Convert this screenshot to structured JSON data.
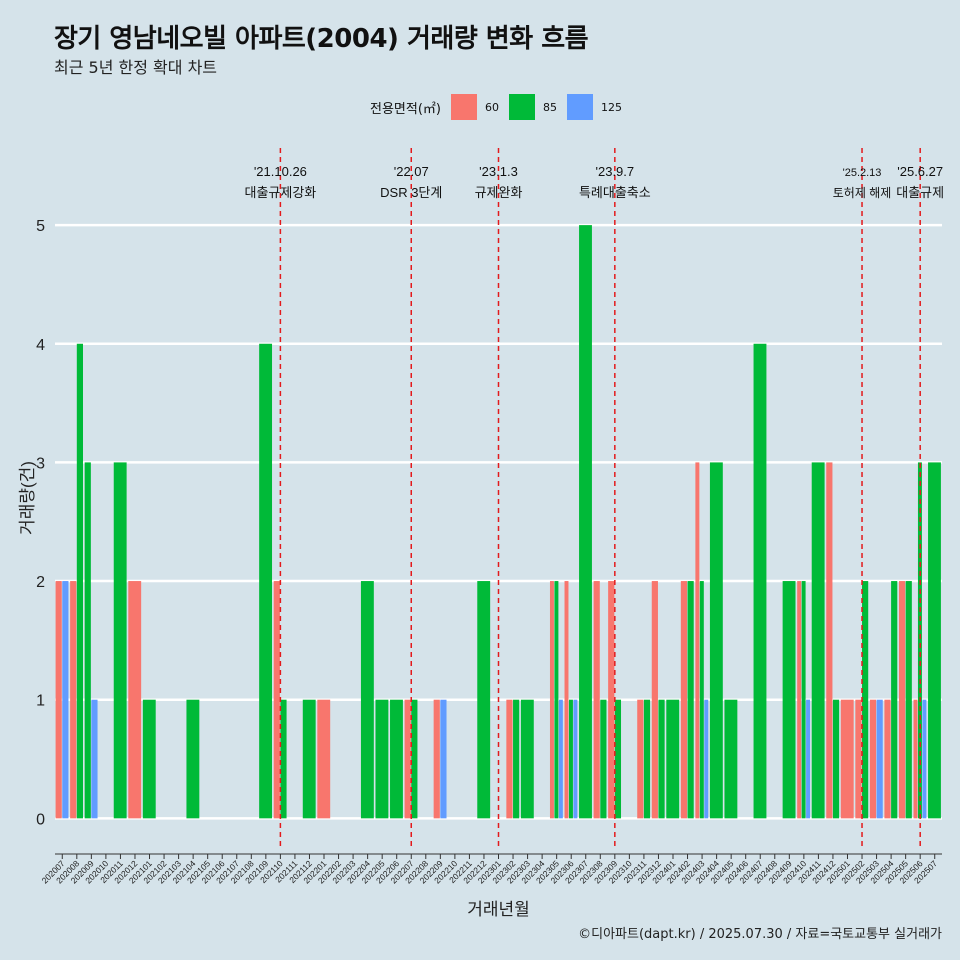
{
  "title": "장기 영남네오빌 아파트(2004) 거래량 변화 흐름",
  "subtitle": "최근 5년 한정 확대 차트",
  "legend": {
    "title": "전용면적(㎡)",
    "items": [
      {
        "label": "60",
        "color": "#f8766d"
      },
      {
        "label": "85",
        "color": "#00ba38"
      },
      {
        "label": "125",
        "color": "#619cff"
      }
    ]
  },
  "source": "©디아파트(dapt.kr) / 2025.07.30 / 자료=국토교통부 실거래가",
  "chart_data": {
    "type": "bar",
    "xlabel": "거래년월",
    "ylabel": "거래량(건)",
    "ylim": [
      -0.25,
      5.65
    ],
    "yticks": [
      0,
      1,
      2,
      3,
      4,
      5
    ],
    "categories": [
      "202007",
      "202008",
      "202009",
      "202010",
      "202011",
      "202012",
      "202101",
      "202102",
      "202103",
      "202104",
      "202105",
      "202106",
      "202107",
      "202108",
      "202109",
      "202110",
      "202111",
      "202112",
      "202201",
      "202202",
      "202203",
      "202204",
      "202205",
      "202206",
      "202207",
      "202208",
      "202209",
      "202210",
      "202211",
      "202212",
      "202301",
      "202302",
      "202303",
      "202304",
      "202305",
      "202306",
      "202307",
      "202308",
      "202309",
      "202310",
      "202311",
      "202312",
      "202401",
      "202402",
      "202403",
      "202404",
      "202405",
      "202406",
      "202407",
      "202408",
      "202409",
      "202410",
      "202411",
      "202412",
      "202501",
      "202502",
      "202503",
      "202504",
      "202505",
      "202506",
      "202507"
    ],
    "series": [
      {
        "name": "60",
        "color": "#f8766d",
        "values": [
          2,
          2,
          0,
          0,
          0,
          2,
          0,
          0,
          0,
          0,
          0,
          0,
          0,
          0,
          0,
          2,
          0,
          0,
          1,
          0,
          0,
          0,
          0,
          0,
          1,
          0,
          1,
          0,
          0,
          0,
          0,
          1,
          0,
          0,
          2,
          2,
          0,
          2,
          2,
          0,
          1,
          2,
          0,
          2,
          3,
          0,
          0,
          0,
          0,
          0,
          0,
          2,
          0,
          3,
          1,
          1,
          1,
          1,
          2,
          1,
          0
        ]
      },
      {
        "name": "85",
        "color": "#00ba38",
        "values": [
          0,
          4,
          3,
          0,
          3,
          0,
          1,
          0,
          0,
          1,
          0,
          0,
          0,
          0,
          4,
          1,
          0,
          1,
          0,
          0,
          0,
          2,
          1,
          1,
          1,
          0,
          0,
          0,
          0,
          2,
          0,
          1,
          1,
          0,
          2,
          1,
          5,
          1,
          1,
          0,
          1,
          1,
          1,
          2,
          2,
          3,
          1,
          0,
          4,
          0,
          2,
          2,
          3,
          1,
          0,
          2,
          0,
          2,
          2,
          3,
          3
        ]
      },
      {
        "name": "125",
        "color": "#619cff",
        "values": [
          2,
          0,
          1,
          0,
          0,
          0,
          0,
          0,
          0,
          0,
          0,
          0,
          0,
          0,
          0,
          0,
          0,
          0,
          0,
          0,
          0,
          0,
          0,
          0,
          0,
          0,
          1,
          0,
          0,
          0,
          0,
          0,
          0,
          0,
          1,
          1,
          0,
          0,
          0,
          0,
          0,
          0,
          0,
          0,
          1,
          0,
          0,
          0,
          0,
          0,
          0,
          1,
          0,
          0,
          0,
          0,
          1,
          0,
          0,
          1,
          0
        ]
      }
    ],
    "annotations": [
      {
        "at": "202110",
        "line1": "'21.10.26",
        "line2": "대출규제강화"
      },
      {
        "at": "202207",
        "line1": "'22.07",
        "line2": "DSR 3단계"
      },
      {
        "at": "202301",
        "line1": "'23.1.3",
        "line2": "규제완화"
      },
      {
        "at": "202309",
        "line1": "'23.9.7",
        "line2": "특례대출축소"
      },
      {
        "at": "202502",
        "line1": "'25.2.13",
        "line2": "토허제 해제"
      },
      {
        "at": "202506",
        "line1": "'25.6.27",
        "line2": "대출규제"
      }
    ],
    "grid": true,
    "legend_position": "top"
  }
}
